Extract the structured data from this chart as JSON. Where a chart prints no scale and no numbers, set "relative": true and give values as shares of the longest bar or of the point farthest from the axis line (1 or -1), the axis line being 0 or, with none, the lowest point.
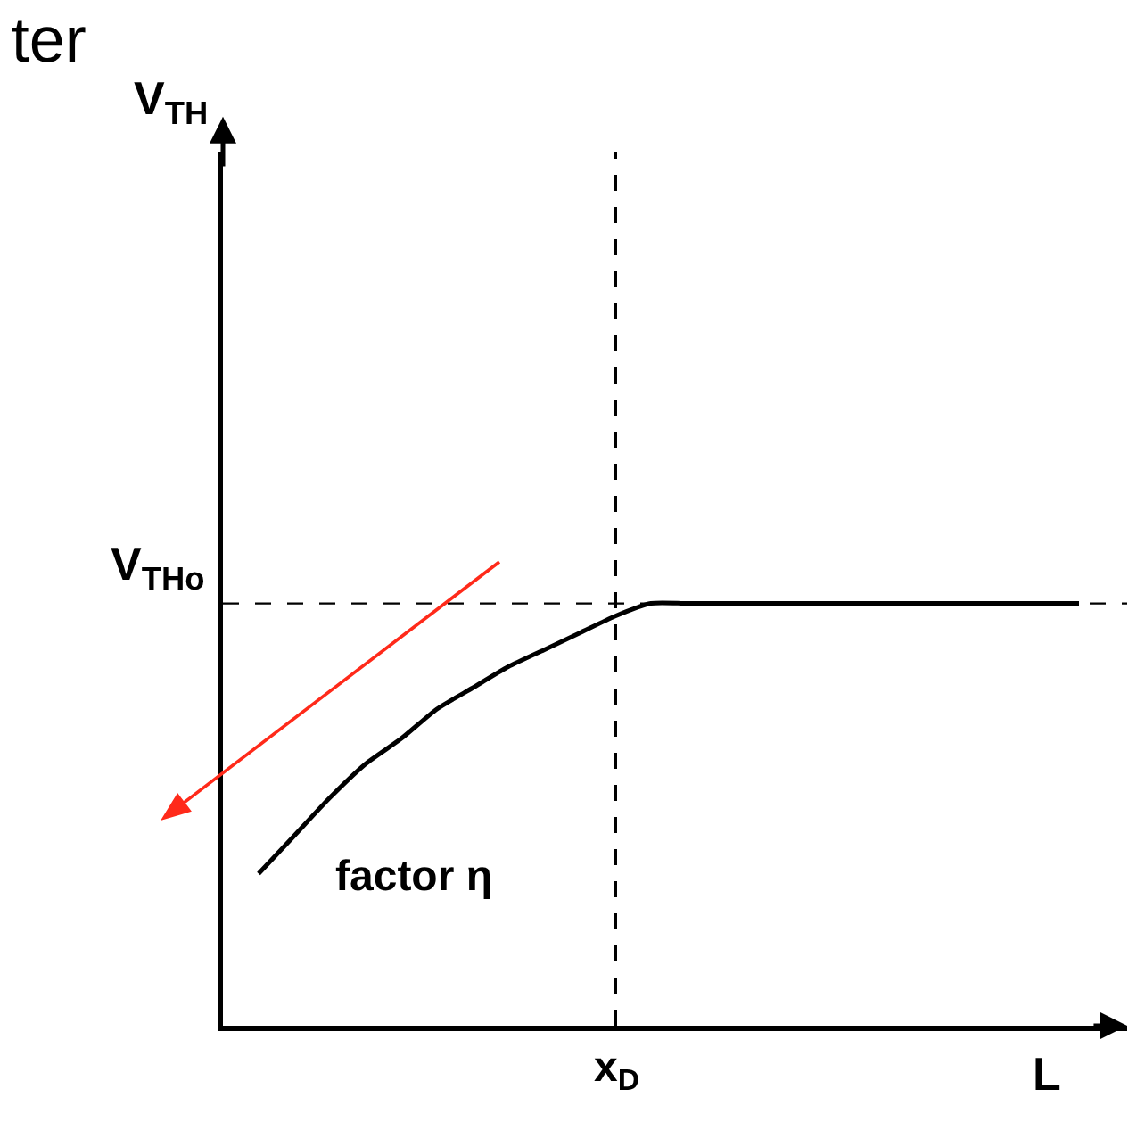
{
  "chart_data": {
    "type": "line",
    "title": "ter",
    "xlabel": "L",
    "relative": true,
    "categories": [
      null,
      null,
      null,
      null,
      null,
      null,
      null,
      null,
      null,
      null,
      null,
      null,
      null,
      null,
      null,
      null,
      null,
      null,
      null,
      null,
      null,
      null,
      null,
      null
    ],
    "series": [
      {
        "color": "#000000",
        "values": [
          0.36,
          0.45,
          0.54,
          0.62,
          0.68,
          0.75,
          0.8,
          0.85,
          0.89,
          0.93,
          0.97,
          1.0,
          1.0,
          1.0,
          1.0,
          1.0,
          1.0,
          1.0,
          1.0,
          1.0,
          1.0,
          1.0,
          1.0,
          1.0
        ]
      }
    ],
    "ref_lines": [
      {
        "axis": "y",
        "value": 1.0,
        "label": "V$_{THo}$",
        "color": "#000000",
        "line_style": "dashed"
      }
    ],
    "annotations": [
      "V$_{TH}$",
      "factor η",
      "x$_{D}$"
    ],
    "line_style": "solid",
    "marker": "none"
  }
}
